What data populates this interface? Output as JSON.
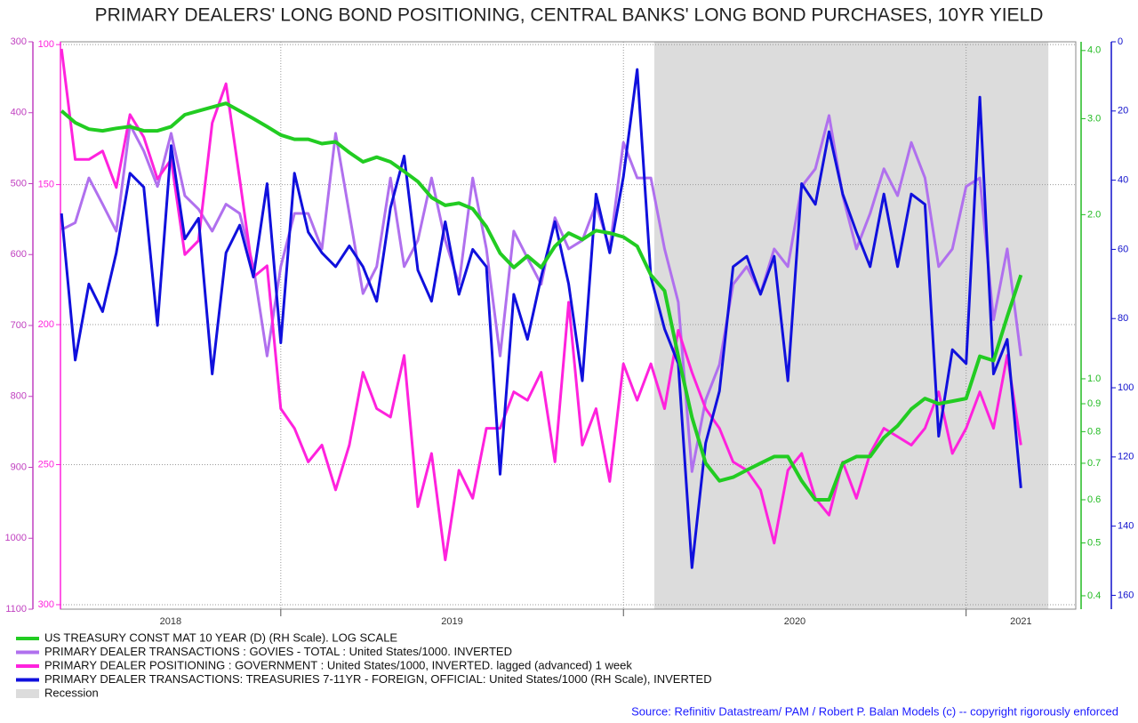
{
  "chart_data": {
    "type": "line",
    "title": "PRIMARY DEALERS' LONG BOND POSITIONING, CENTRAL BANKS' LONG BOND PURCHASES, 10YR YIELD",
    "source": "Source: Refinitiv Datastream/ PAM / Robert P. Balan Models (c) -- copyright rigorously enforced",
    "xlim": [
      2018.357,
      2021.32
    ],
    "xticks": [
      2018,
      2019,
      2020,
      2021
    ],
    "ylim": [
      1100,
      300
    ],
    "yticks": [
      300,
      400,
      500,
      600,
      700,
      800,
      900,
      1000,
      1100
    ],
    "ycolor": "#c040c0",
    "y3lim": [
      301.6,
      99
    ],
    "y3ticks": [
      100,
      150,
      200,
      250,
      300
    ],
    "y3color": "#ff22dd",
    "y2lim": [
      0.378,
      4.15
    ],
    "y2log": true,
    "y2ticks": [
      {
        "value": 4.0,
        "label": "4.0"
      },
      {
        "value": 3.0,
        "label": "3.0"
      },
      {
        "value": 2.0,
        "label": "2.0"
      },
      {
        "value": 1.0,
        "label": "1.0"
      },
      0.9,
      0.8,
      0.7,
      0.6,
      0.5,
      0.4
    ],
    "y2color": "#22bb22",
    "y4lim": [
      164,
      0
    ],
    "y4ticks": [
      0,
      20,
      40,
      60,
      80,
      100,
      120,
      140,
      160
    ],
    "y4color": "#1010cc",
    "grid": true,
    "grid_axis": "y3",
    "shaded_regions": [
      {
        "name": "Recession",
        "start": 2020.09,
        "end": 2021.24,
        "color": "#dcdcdc"
      }
    ],
    "x": [
      2018.36,
      2018.4,
      2018.44,
      2018.48,
      2018.52,
      2018.56,
      2018.6,
      2018.64,
      2018.68,
      2018.72,
      2018.76,
      2018.8,
      2018.84,
      2018.88,
      2018.92,
      2018.96,
      2019.0,
      2019.04,
      2019.08,
      2019.12,
      2019.16,
      2019.2,
      2019.24,
      2019.28,
      2019.32,
      2019.36,
      2019.4,
      2019.44,
      2019.48,
      2019.52,
      2019.56,
      2019.6,
      2019.64,
      2019.68,
      2019.72,
      2019.76,
      2019.8,
      2019.84,
      2019.88,
      2019.92,
      2019.96,
      2020.0,
      2020.04,
      2020.08,
      2020.12,
      2020.16,
      2020.2,
      2020.24,
      2020.28,
      2020.32,
      2020.36,
      2020.4,
      2020.44,
      2020.48,
      2020.52,
      2020.56,
      2020.6,
      2020.64,
      2020.68,
      2020.72,
      2020.76,
      2020.8,
      2020.84,
      2020.88,
      2020.92,
      2020.96,
      2021.0,
      2021.04,
      2021.08,
      2021.12,
      2021.16
    ],
    "series": [
      {
        "name": "US TREASURY CONST MAT 10 YEAR (D) (RH Scale). LOG SCALE",
        "color": "#22cc22",
        "axis": "y2",
        "width": 4,
        "values": [
          3.1,
          2.95,
          2.87,
          2.85,
          2.88,
          2.9,
          2.85,
          2.85,
          2.9,
          3.05,
          3.1,
          3.15,
          3.2,
          3.1,
          3.0,
          2.9,
          2.8,
          2.75,
          2.75,
          2.7,
          2.72,
          2.6,
          2.5,
          2.55,
          2.5,
          2.4,
          2.3,
          2.15,
          2.08,
          2.1,
          2.05,
          1.9,
          1.7,
          1.6,
          1.68,
          1.6,
          1.75,
          1.85,
          1.8,
          1.87,
          1.85,
          1.82,
          1.75,
          1.55,
          1.45,
          1.1,
          0.85,
          0.7,
          0.65,
          0.66,
          0.68,
          0.7,
          0.72,
          0.72,
          0.65,
          0.6,
          0.6,
          0.7,
          0.72,
          0.72,
          0.78,
          0.82,
          0.88,
          0.92,
          0.9,
          0.91,
          0.92,
          1.1,
          1.08,
          1.3,
          1.55
        ]
      },
      {
        "name": "PRIMARY DEALER TRANSACTIONS : GOVIES - TOTAL : United States/1000. INVERTED",
        "color": "#b070ee",
        "axis": "y",
        "width": 3,
        "values": [
          565,
          555,
          492,
          529,
          567,
          417,
          454,
          504,
          429,
          517,
          536,
          567,
          529,
          542,
          617,
          743,
          617,
          542,
          542,
          592,
          429,
          542,
          655,
          617,
          492,
          617,
          580,
          492,
          580,
          642,
          492,
          592,
          743,
          567,
          605,
          642,
          548,
          592,
          580,
          529,
          592,
          442,
          492,
          492,
          592,
          667,
          906,
          805,
          755,
          642,
          617,
          655,
          592,
          617,
          504,
          479,
          404,
          517,
          592,
          542,
          479,
          517,
          442,
          492,
          617,
          592,
          504,
          492,
          692,
          592,
          743
        ]
      },
      {
        "name": "PRIMARY DEALER POSITIONING : GOVERNMENT : United States/1000, INVERTED. lagged (advanced) 1 week",
        "color": "#ff22dd",
        "axis": "y3",
        "width": 3,
        "values": [
          101.5,
          141,
          141,
          138,
          151,
          125,
          133,
          148,
          141,
          175,
          170,
          128,
          114,
          148,
          183,
          179,
          230,
          237,
          249,
          243,
          259,
          243,
          217,
          230,
          233,
          211,
          265,
          246,
          284,
          252,
          262,
          237,
          237,
          224,
          227,
          217,
          249,
          192,
          243,
          230,
          256,
          214,
          227,
          214,
          230,
          202,
          217,
          230,
          237,
          249,
          252,
          259,
          278,
          252,
          246,
          262,
          268,
          249,
          262,
          246,
          237,
          240,
          243,
          237,
          224,
          246,
          237,
          224,
          237,
          211,
          243
        ]
      },
      {
        "name": "PRIMARY DEALER TRANSACTIONS: TREASURIES 7-11YR - FOREIGN, OFFICIAL: United States/1000 (RH Scale), INVERTED",
        "color": "#1010dd",
        "axis": "y4",
        "width": 3,
        "values": [
          49.6,
          92,
          70,
          78,
          61,
          38,
          42,
          82,
          30,
          57,
          51,
          96,
          61,
          53,
          68,
          41,
          87,
          38,
          55,
          61,
          65,
          59,
          65,
          75,
          48,
          33,
          66,
          75,
          52,
          73,
          60,
          65,
          125,
          73,
          86,
          68,
          52,
          70,
          98,
          44,
          61,
          39,
          8,
          68,
          83,
          93,
          152,
          116,
          101,
          65,
          62,
          73,
          62,
          98,
          41,
          47,
          26,
          44,
          55,
          65,
          44,
          65,
          44,
          47,
          114,
          89,
          93,
          16,
          96,
          86,
          129
        ]
      }
    ]
  }
}
